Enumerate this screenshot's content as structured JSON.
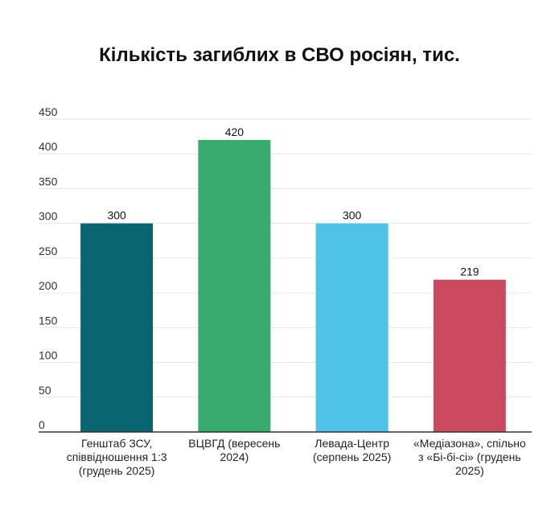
{
  "chart_data": {
    "type": "bar",
    "title": "Кількість загиблих в СВО росіян, тис.",
    "categories": [
      "Генштаб ЗСУ, співвідношення 1:3 (грудень 2025)",
      "ВЦВГД (вересень 2024)",
      "Левада-Центр (серпень 2025)",
      "«Медіазона», спільно з «Бі-бі-сі» (грудень 2025)"
    ],
    "values": [
      300,
      420,
      300,
      219
    ],
    "data_labels": [
      "300",
      "420",
      "300",
      "219"
    ],
    "colors": [
      "#07666f",
      "#3aab6e",
      "#4fc3e6",
      "#c94a5e"
    ],
    "ylim": [
      0,
      450
    ],
    "yticks": [
      0,
      50,
      100,
      150,
      200,
      250,
      300,
      350,
      400,
      450
    ],
    "ytick_labels": [
      "0",
      "50",
      "100",
      "150",
      "200",
      "250",
      "300",
      "350",
      "400",
      "450"
    ],
    "xlabel": "",
    "ylabel": "",
    "grid": true,
    "legend": "none"
  }
}
